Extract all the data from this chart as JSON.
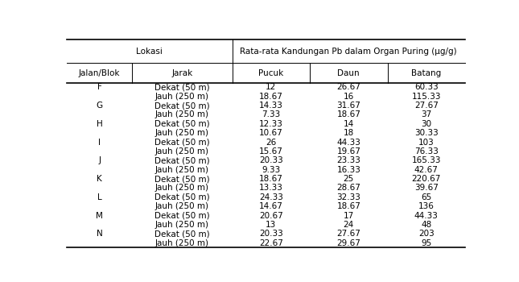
{
  "title_lokasi": "Lokasi",
  "title_rata": "Rata-rata Kandungan Pb dalam Organ Puring (μg/g)",
  "col_headers": [
    "Jalan/Blok",
    "Jarak",
    "Pucuk",
    "Daun",
    "Batang"
  ],
  "rows": [
    [
      "F",
      "Dekat (50 m)",
      "12",
      "26.67",
      "60.33"
    ],
    [
      "",
      "Jauh (250 m)",
      "18.67",
      "16",
      "115.33"
    ],
    [
      "G",
      "Dekat (50 m)",
      "14.33",
      "31.67",
      "27.67"
    ],
    [
      "",
      "Jauh (250 m)",
      "7.33",
      "18.67",
      "37"
    ],
    [
      "H",
      "Dekat (50 m)",
      "12.33",
      "14",
      "30"
    ],
    [
      "",
      "Jauh (250 m)",
      "10.67",
      "18",
      "30.33"
    ],
    [
      "I",
      "Dekat (50 m)",
      "26",
      "44.33",
      "103"
    ],
    [
      "",
      "Jauh (250 m)",
      "15.67",
      "19.67",
      "76.33"
    ],
    [
      "J",
      "Dekat (50 m)",
      "20.33",
      "23.33",
      "165.33"
    ],
    [
      "",
      "Jauh (250 m)",
      "9.33",
      "16.33",
      "42.67"
    ],
    [
      "K",
      "Dekat (50 m)",
      "18.67",
      "25",
      "220.67"
    ],
    [
      "",
      "Jauh (250 m)",
      "13.33",
      "28.67",
      "39.67"
    ],
    [
      "L",
      "Dekat (50 m)",
      "24.33",
      "32.33",
      "65"
    ],
    [
      "",
      "Jauh (250 m)",
      "14.67",
      "18.67",
      "136"
    ],
    [
      "M",
      "Dekat (50 m)",
      "20.67",
      "17",
      "44.33"
    ],
    [
      "",
      "Jauh (250 m)",
      "13",
      "24",
      "48"
    ],
    [
      "N",
      "Dekat (50 m)",
      "20.33",
      "27.67",
      "203"
    ],
    [
      "",
      "Jauh (250 m)",
      "22.67",
      "29.67",
      "95"
    ]
  ],
  "background_color": "#ffffff",
  "line_color": "#000000",
  "font_size": 7.5
}
